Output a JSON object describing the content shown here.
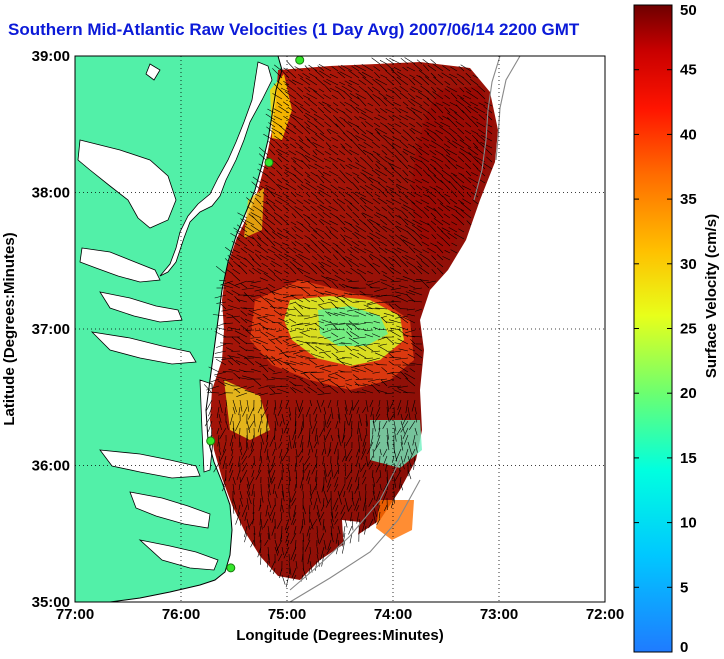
{
  "title": "Southern Mid-Atlantic Raw Velocities (1 Day Avg) 2007/06/14 2200 GMT",
  "map": {
    "xlabel": "Longitude (Degrees:Minutes)",
    "ylabel": "Latitude (Degrees:Minutes)",
    "x_ticks": [
      "77:00",
      "76:00",
      "75:00",
      "74:00",
      "73:00",
      "72:00"
    ],
    "y_ticks": [
      "39:00",
      "38:00",
      "37:00",
      "36:00",
      "35:00"
    ],
    "lon_range": [
      -77,
      -72
    ],
    "lat_range": [
      35,
      39
    ],
    "grid": "dotted",
    "colors": {
      "land": "#52f0a8",
      "water": "#ffffff",
      "vectors": "#000000",
      "radar_sites": "#34e62c"
    },
    "radar_sites": [
      {
        "lon": -74.88,
        "lat": 38.97
      },
      {
        "lon": -75.17,
        "lat": 38.22
      },
      {
        "lon": -75.72,
        "lat": 36.18
      },
      {
        "lon": -75.53,
        "lat": 35.25
      }
    ]
  },
  "colorbar": {
    "label": "Surface Velocity (cm/s)",
    "ticks": [
      "50",
      "45",
      "40",
      "35",
      "30",
      "25",
      "20",
      "15",
      "10",
      "5",
      "0"
    ],
    "range": [
      0,
      50
    ]
  }
}
